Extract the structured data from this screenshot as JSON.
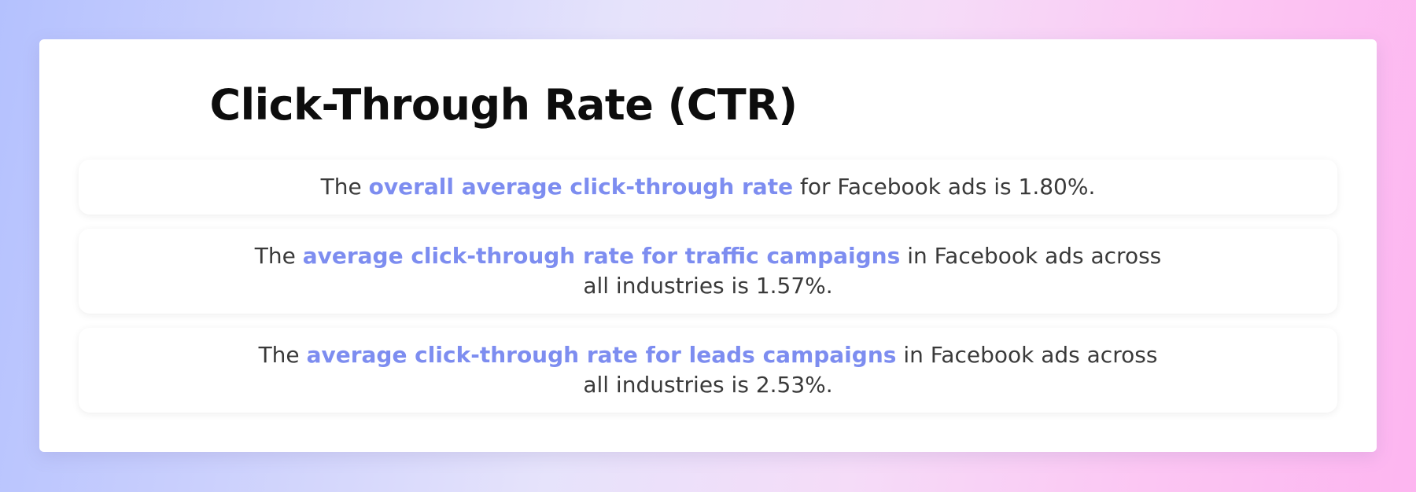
{
  "title": "Click-Through Rate (CTR)",
  "colors": {
    "highlight": "#7d8df0",
    "text": "#3a3a3a",
    "title": "#0d0d0d"
  },
  "stats": [
    {
      "prefix": "The ",
      "highlight": "overall average click-through rate",
      "suffix": " for Facebook ads is 1.80%."
    },
    {
      "prefix": "The ",
      "highlight": "average click-through rate for traffic campaigns",
      "suffix": " in Facebook ads across all industries is 1.57%."
    },
    {
      "prefix": "The ",
      "highlight": "average click-through rate for leads campaigns",
      "suffix": " in Facebook ads across all industries is 2.53%."
    }
  ]
}
